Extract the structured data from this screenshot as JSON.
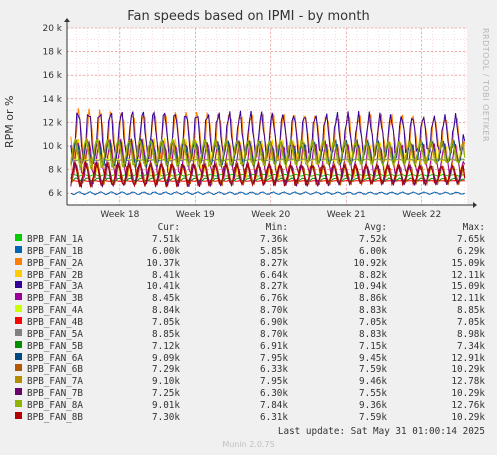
{
  "chart_data": {
    "type": "line",
    "title": "Fan speeds based on IPMI - by month",
    "ylabel": "RPM or %",
    "ylim": [
      5000,
      20000
    ],
    "yticks": [
      6000,
      8000,
      10000,
      12000,
      14000,
      16000,
      18000,
      20000
    ],
    "ytick_labels": [
      "6 k",
      "8 k",
      "10 k",
      "12 k",
      "14 k",
      "16 k",
      "18 k",
      "20 k"
    ],
    "x_range_weeks": [
      17.3,
      22.6
    ],
    "xticks": [
      18,
      19,
      20,
      21,
      22
    ],
    "xtick_labels": [
      "Week 18",
      "Week 19",
      "Week 20",
      "Week 21",
      "Week 22"
    ],
    "grid": true,
    "columns": [
      "Cur:",
      "Min:",
      "Avg:",
      "Max:"
    ],
    "series": [
      {
        "name": "BPB_FAN_1A",
        "color": "#00cc00",
        "cur": "7.51k",
        "min": "7.36k",
        "avg": "7.52k",
        "max": "7.65k"
      },
      {
        "name": "BPB_FAN_1B",
        "color": "#0066b3",
        "cur": "6.00k",
        "min": "5.85k",
        "avg": "6.00k",
        "max": "6.29k"
      },
      {
        "name": "BPB_FAN_2A",
        "color": "#ff8000",
        "cur": "10.37k",
        "min": "8.27k",
        "avg": "10.92k",
        "max": "15.09k"
      },
      {
        "name": "BPB_FAN_2B",
        "color": "#ffcc00",
        "cur": "8.41k",
        "min": "6.64k",
        "avg": "8.82k",
        "max": "12.11k"
      },
      {
        "name": "BPB_FAN_3A",
        "color": "#330099",
        "cur": "10.41k",
        "min": "8.27k",
        "avg": "10.94k",
        "max": "15.09k"
      },
      {
        "name": "BPB_FAN_3B",
        "color": "#990099",
        "cur": "8.45k",
        "min": "6.76k",
        "avg": "8.86k",
        "max": "12.11k"
      },
      {
        "name": "BPB_FAN_4A",
        "color": "#ccff00",
        "cur": "8.84k",
        "min": "8.70k",
        "avg": "8.83k",
        "max": "8.85k"
      },
      {
        "name": "BPB_FAN_4B",
        "color": "#ff0000",
        "cur": "7.05k",
        "min": "6.90k",
        "avg": "7.05k",
        "max": "7.05k"
      },
      {
        "name": "BPB_FAN_5A",
        "color": "#808080",
        "cur": "8.85k",
        "min": "8.70k",
        "avg": "8.83k",
        "max": "8.98k"
      },
      {
        "name": "BPB_FAN_5B",
        "color": "#008f00",
        "cur": "7.12k",
        "min": "6.91k",
        "avg": "7.15k",
        "max": "7.34k"
      },
      {
        "name": "BPB_FAN_6A",
        "color": "#00487d",
        "cur": "9.09k",
        "min": "7.95k",
        "avg": "9.45k",
        "max": "12.91k"
      },
      {
        "name": "BPB_FAN_6B",
        "color": "#b35a00",
        "cur": "7.29k",
        "min": "6.33k",
        "avg": "7.59k",
        "max": "10.29k"
      },
      {
        "name": "BPB_FAN_7A",
        "color": "#b38f00",
        "cur": "9.10k",
        "min": "7.95k",
        "avg": "9.46k",
        "max": "12.78k"
      },
      {
        "name": "BPB_FAN_7B",
        "color": "#6b006b",
        "cur": "7.25k",
        "min": "6.30k",
        "avg": "7.55k",
        "max": "10.29k"
      },
      {
        "name": "BPB_FAN_8A",
        "color": "#8fb300",
        "cur": "9.01k",
        "min": "7.84k",
        "avg": "9.36k",
        "max": "12.76k"
      },
      {
        "name": "BPB_FAN_8B",
        "color": "#b30000",
        "cur": "7.30k",
        "min": "6.31k",
        "avg": "7.59k",
        "max": "10.29k"
      }
    ]
  },
  "watermark": "RRDTOOL / TOBI OETIKER",
  "last_update": "Last update: Sat May 31 01:00:14 2025",
  "generator": "Munin 2.0.75"
}
